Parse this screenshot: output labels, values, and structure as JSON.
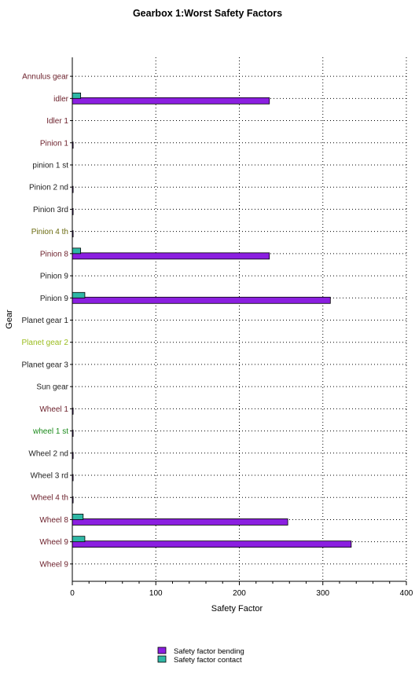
{
  "chart_data": {
    "type": "bar",
    "orientation": "horizontal",
    "title": "Gearbox 1:Worst Safety Factors",
    "xlabel": "Safety Factor",
    "ylabel": "Gear",
    "xlim": [
      0,
      400
    ],
    "xticks": [
      "0",
      "100",
      "200",
      "300",
      "400"
    ],
    "grid": true,
    "legend_position": "bottom",
    "categories": [
      "Annulus gear",
      "idler",
      "Idler 1",
      "Pinion 1",
      "pinion 1 st",
      "Pinion 2 nd",
      "Pinion 3rd",
      "Pinion 4 th",
      "Pinion 8",
      "Pinion 9",
      "Pinion 9",
      "Planet gear 1",
      "Planet gear 2",
      "Planet gear 3",
      "Sun gear",
      "Wheel 1",
      "wheel 1 st",
      "Wheel 2 nd",
      "Wheel 3 rd",
      "Wheel 4 th",
      "Wheel 8",
      "Wheel 9",
      "Wheel 9"
    ],
    "category_colors": [
      "#6b1f2a",
      "#6b1f2a",
      "#6b1f2a",
      "#6b1f2a",
      "#222222",
      "#222222",
      "#222222",
      "#6b6b10",
      "#6b1f2a",
      "#222222",
      "#222222",
      "#222222",
      "#9bbd1f",
      "#222222",
      "#222222",
      "#6b1f2a",
      "#1a8a1a",
      "#222222",
      "#222222",
      "#6b1f2a",
      "#6b1f2a",
      "#6b1f2a",
      "#6b1f2a"
    ],
    "series": [
      {
        "name": "Safety factor bending",
        "color": "#8b1fe0",
        "values": [
          0,
          236,
          0,
          1,
          0,
          1,
          1,
          1,
          236,
          0,
          309,
          0,
          0,
          0,
          0,
          1,
          1,
          1,
          1,
          1,
          258,
          334,
          0
        ]
      },
      {
        "name": "Safety factor contact",
        "color": "#2fb8a6",
        "values": [
          0,
          10,
          0,
          0,
          0,
          0,
          0,
          0,
          10,
          0,
          15,
          0,
          0,
          0,
          0,
          0,
          0,
          0,
          0,
          0,
          13,
          15,
          0
        ]
      }
    ]
  }
}
